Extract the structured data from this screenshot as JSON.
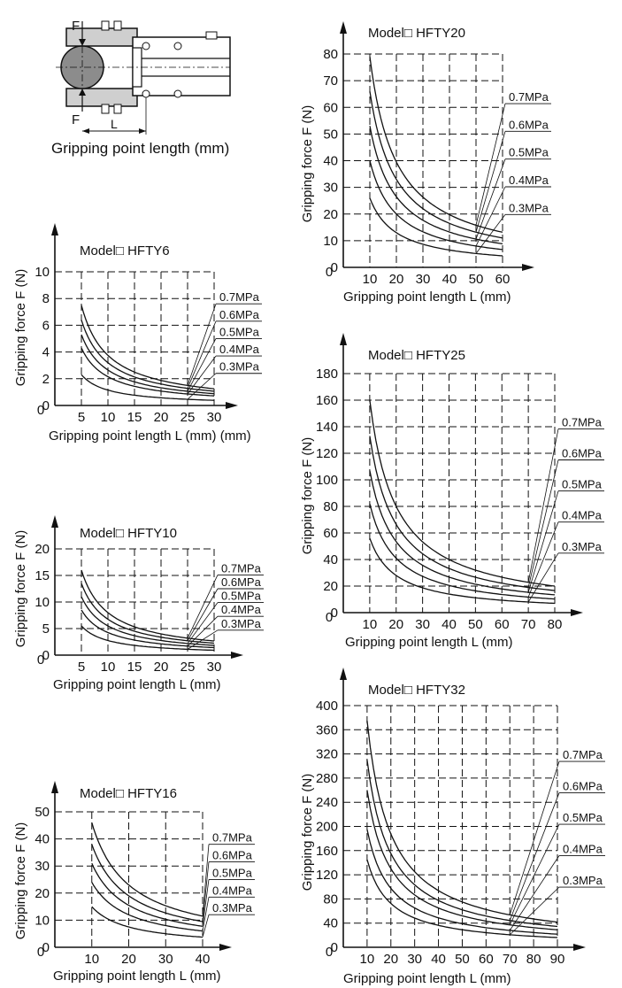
{
  "diagram": {
    "force_label_top": "F",
    "force_label_bottom": "F",
    "length_label": "L",
    "caption": "Gripping point length (mm)"
  },
  "chart_data": [
    {
      "type": "line",
      "title": "Model□ HFTY6",
      "xlabel": "Gripping point length L (mm) (mm)",
      "ylabel": "Gripping force F   (N)",
      "xlim": [
        0,
        30
      ],
      "ylim": [
        0,
        10
      ],
      "xticks": [
        5,
        10,
        15,
        20,
        25,
        30
      ],
      "yticks": [
        0,
        2,
        4,
        6,
        8,
        10
      ],
      "grid": true,
      "series": [
        {
          "name": "0.7MPa",
          "x": [
            5,
            10,
            15,
            20,
            25,
            30
          ],
          "y": [
            7.5,
            3.6,
            2.4,
            1.8,
            1.4,
            1.2
          ]
        },
        {
          "name": "0.6MPa",
          "x": [
            5,
            10,
            15,
            20,
            25,
            30
          ],
          "y": [
            6.4,
            3.1,
            2.0,
            1.5,
            1.2,
            1.0
          ]
        },
        {
          "name": "0.5MPa",
          "x": [
            5,
            10,
            15,
            20,
            25,
            30
          ],
          "y": [
            5.3,
            2.6,
            1.7,
            1.3,
            1.0,
            0.9
          ]
        },
        {
          "name": "0.4MPa",
          "x": [
            5,
            10,
            15,
            20,
            25,
            30
          ],
          "y": [
            4.3,
            2.1,
            1.4,
            1.0,
            0.8,
            0.7
          ]
        },
        {
          "name": "0.3MPa",
          "x": [
            5,
            10,
            15,
            20,
            25,
            30
          ],
          "y": [
            2.3,
            1.2,
            0.8,
            0.6,
            0.5,
            0.4
          ]
        }
      ]
    },
    {
      "type": "line",
      "title": "Model□ HFTY10",
      "xlabel": "Gripping point length L (mm)",
      "ylabel": "Gripping force F   (N)",
      "xlim": [
        0,
        30
      ],
      "ylim": [
        0,
        20
      ],
      "xticks": [
        5,
        10,
        15,
        20,
        25,
        30
      ],
      "yticks": [
        0,
        5,
        10,
        15,
        20
      ],
      "grid": true,
      "series": [
        {
          "name": "0.7MPa",
          "x": [
            5,
            10,
            15,
            20,
            25,
            30
          ],
          "y": [
            16,
            8.0,
            5.3,
            4.0,
            3.2,
            2.7
          ]
        },
        {
          "name": "0.6MPa",
          "x": [
            5,
            10,
            15,
            20,
            25,
            30
          ],
          "y": [
            13.5,
            6.8,
            4.5,
            3.4,
            2.7,
            2.3
          ]
        },
        {
          "name": "0.5MPa",
          "x": [
            5,
            10,
            15,
            20,
            25,
            30
          ],
          "y": [
            11,
            5.6,
            3.7,
            2.8,
            2.2,
            1.9
          ]
        },
        {
          "name": "0.4MPa",
          "x": [
            5,
            10,
            15,
            20,
            25,
            30
          ],
          "y": [
            8.5,
            4.3,
            2.9,
            2.2,
            1.7,
            1.4
          ]
        },
        {
          "name": "0.3MPa",
          "x": [
            5,
            10,
            15,
            20,
            25,
            30
          ],
          "y": [
            5.5,
            2.8,
            1.9,
            1.4,
            1.1,
            0.9
          ]
        }
      ]
    },
    {
      "type": "line",
      "title": "Model□ HFTY16",
      "xlabel": "Gripping point length L (mm)",
      "ylabel": "Gripping force F   (N)",
      "xlim": [
        0,
        40
      ],
      "ylim": [
        0,
        50
      ],
      "xticks": [
        10,
        20,
        30,
        40
      ],
      "yticks": [
        0,
        10,
        20,
        30,
        40,
        50
      ],
      "grid": true,
      "series": [
        {
          "name": "0.7MPa",
          "x": [
            10,
            20,
            30,
            40
          ],
          "y": [
            46,
            23,
            15.5,
            11.5
          ]
        },
        {
          "name": "0.6MPa",
          "x": [
            10,
            20,
            30,
            40
          ],
          "y": [
            38,
            19,
            12.7,
            9.5
          ]
        },
        {
          "name": "0.5MPa",
          "x": [
            10,
            20,
            30,
            40
          ],
          "y": [
            31,
            15.5,
            10.3,
            7.8
          ]
        },
        {
          "name": "0.4MPa",
          "x": [
            10,
            20,
            30,
            40
          ],
          "y": [
            24,
            12,
            8,
            6
          ]
        },
        {
          "name": "0.3MPa",
          "x": [
            10,
            20,
            30,
            40
          ],
          "y": [
            15,
            8,
            5.3,
            4
          ]
        }
      ]
    },
    {
      "type": "line",
      "title": "Model□ HFTY20",
      "xlabel": "Gripping point length L (mm)",
      "ylabel": "Gripping force F   (N)",
      "xlim": [
        0,
        60
      ],
      "ylim": [
        0,
        80
      ],
      "xticks": [
        10,
        20,
        30,
        40,
        50,
        60
      ],
      "yticks": [
        0,
        10,
        20,
        30,
        40,
        50,
        60,
        70,
        80
      ],
      "grid": true,
      "series": [
        {
          "name": "0.7MPa",
          "x": [
            10,
            20,
            30,
            40,
            50,
            60
          ],
          "y": [
            79,
            40,
            27,
            20,
            16,
            13
          ]
        },
        {
          "name": "0.6MPa",
          "x": [
            10,
            20,
            30,
            40,
            50,
            60
          ],
          "y": [
            66,
            33,
            22,
            17,
            13,
            11
          ]
        },
        {
          "name": "0.5MPa",
          "x": [
            10,
            20,
            30,
            40,
            50,
            60
          ],
          "y": [
            53,
            27,
            18,
            13,
            11,
            9
          ]
        },
        {
          "name": "0.4MPa",
          "x": [
            10,
            20,
            30,
            40,
            50,
            60
          ],
          "y": [
            40,
            20,
            13,
            10,
            8,
            7
          ]
        },
        {
          "name": "0.3MPa",
          "x": [
            10,
            20,
            30,
            40,
            50,
            60
          ],
          "y": [
            26,
            13,
            9,
            7,
            5.5,
            4.5
          ]
        }
      ]
    },
    {
      "type": "line",
      "title": "Model□ HFTY25",
      "xlabel": "Gripping point length L (mm)",
      "ylabel": "Gripping force F   (N)",
      "xlim": [
        0,
        80
      ],
      "ylim": [
        0,
        180
      ],
      "xticks": [
        10,
        20,
        30,
        40,
        50,
        60,
        70,
        80
      ],
      "yticks": [
        0,
        20,
        40,
        60,
        80,
        100,
        120,
        140,
        160,
        180
      ],
      "grid": true,
      "series": [
        {
          "name": "0.7MPa",
          "x": [
            10,
            20,
            30,
            40,
            50,
            60,
            70,
            80
          ],
          "y": [
            160,
            80,
            53,
            40,
            32,
            27,
            23,
            20
          ]
        },
        {
          "name": "0.6MPa",
          "x": [
            10,
            20,
            30,
            40,
            50,
            60,
            70,
            80
          ],
          "y": [
            133,
            67,
            44,
            33,
            27,
            22,
            19,
            17
          ]
        },
        {
          "name": "0.5MPa",
          "x": [
            10,
            20,
            30,
            40,
            50,
            60,
            70,
            80
          ],
          "y": [
            107,
            54,
            36,
            27,
            21,
            18,
            15,
            13
          ]
        },
        {
          "name": "0.4MPa",
          "x": [
            10,
            20,
            30,
            40,
            50,
            60,
            70,
            80
          ],
          "y": [
            82,
            41,
            27,
            20,
            16,
            14,
            12,
            10
          ]
        },
        {
          "name": "0.3MPa",
          "x": [
            10,
            20,
            30,
            40,
            50,
            60,
            70,
            80
          ],
          "y": [
            56,
            28,
            19,
            14,
            11,
            9,
            8,
            7
          ]
        }
      ]
    },
    {
      "type": "line",
      "title": "Model□ HFTY32",
      "xlabel": "Gripping point length L (mm)",
      "ylabel": "Gripping force F   (N)",
      "xlim": [
        0,
        90
      ],
      "ylim": [
        0,
        400
      ],
      "xticks": [
        10,
        20,
        30,
        40,
        50,
        60,
        70,
        80,
        90
      ],
      "yticks": [
        0,
        40,
        80,
        120,
        160,
        200,
        240,
        280,
        320,
        360,
        400
      ],
      "grid": true,
      "series": [
        {
          "name": "0.7MPa",
          "x": [
            10,
            20,
            30,
            40,
            50,
            60,
            70,
            80,
            90
          ],
          "y": [
            375,
            188,
            125,
            94,
            75,
            62,
            54,
            47,
            42
          ]
        },
        {
          "name": "0.6MPa",
          "x": [
            10,
            20,
            30,
            40,
            50,
            60,
            70,
            80,
            90
          ],
          "y": [
            310,
            155,
            103,
            78,
            62,
            52,
            44,
            39,
            34
          ]
        },
        {
          "name": "0.5MPa",
          "x": [
            10,
            20,
            30,
            40,
            50,
            60,
            70,
            80,
            90
          ],
          "y": [
            260,
            130,
            87,
            65,
            52,
            43,
            37,
            32,
            29
          ]
        },
        {
          "name": "0.4MPa",
          "x": [
            10,
            20,
            30,
            40,
            50,
            60,
            70,
            80,
            90
          ],
          "y": [
            195,
            98,
            65,
            49,
            39,
            33,
            28,
            24,
            22
          ]
        },
        {
          "name": "0.3MPa",
          "x": [
            10,
            20,
            30,
            40,
            50,
            60,
            70,
            80,
            90
          ],
          "y": [
            145,
            73,
            48,
            36,
            29,
            24,
            21,
            18,
            16
          ]
        }
      ]
    }
  ]
}
